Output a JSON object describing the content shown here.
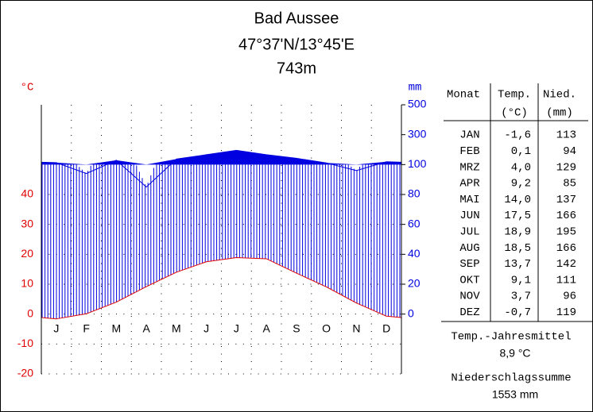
{
  "chart_data": {
    "type": "climate",
    "title": "Bad Aussee",
    "subtitle": "47°37'N/13°45'E",
    "elevation": "743m",
    "ylabel": "°C",
    "y2label": "mm",
    "categories": [
      "J",
      "F",
      "M",
      "A",
      "M",
      "J",
      "J",
      "A",
      "S",
      "O",
      "N",
      "D"
    ],
    "ylim": [
      -20,
      70
    ],
    "yticks": [
      -20,
      -10,
      0,
      10,
      20,
      30,
      40
    ],
    "y2lim": [
      0,
      500
    ],
    "y2ticks": [
      0,
      20,
      40,
      60,
      80,
      100,
      300,
      500
    ],
    "grid": true,
    "series": [
      {
        "name": "Temp.",
        "color": "#e00000",
        "axis": "y",
        "values": [
          -1.6,
          0.1,
          4.0,
          9.2,
          14.0,
          17.5,
          18.9,
          18.5,
          13.7,
          9.1,
          3.7,
          -0.7
        ],
        "value_labels": [
          "-1,6",
          "0,1",
          "4,0",
          "9,2",
          "14,0",
          "17,5",
          "18,9",
          "18,5",
          "13,7",
          "9,1",
          "3,7",
          "-0,7"
        ]
      },
      {
        "name": "Nied.",
        "color": "#0000e0",
        "axis": "y2",
        "values": [
          113,
          94,
          129,
          85,
          137,
          166,
          195,
          166,
          142,
          111,
          96,
          119
        ]
      }
    ],
    "table": {
      "columns": [
        [
          "Monat"
        ],
        [
          "Temp.",
          "(°C)"
        ],
        [
          "Nied.",
          "(mm)"
        ]
      ],
      "months": [
        "JAN",
        "FEB",
        "MRZ",
        "APR",
        "MAI",
        "JUN",
        "JUL",
        "AUG",
        "SEP",
        "OKT",
        "NOV",
        "DEZ"
      ],
      "temp_mean_label": "Temp.-Jahresmittel",
      "temp_mean": "8,9 °C",
      "precip_sum_label": "Niederschlagssumme",
      "precip_sum": "1553 mm"
    }
  }
}
